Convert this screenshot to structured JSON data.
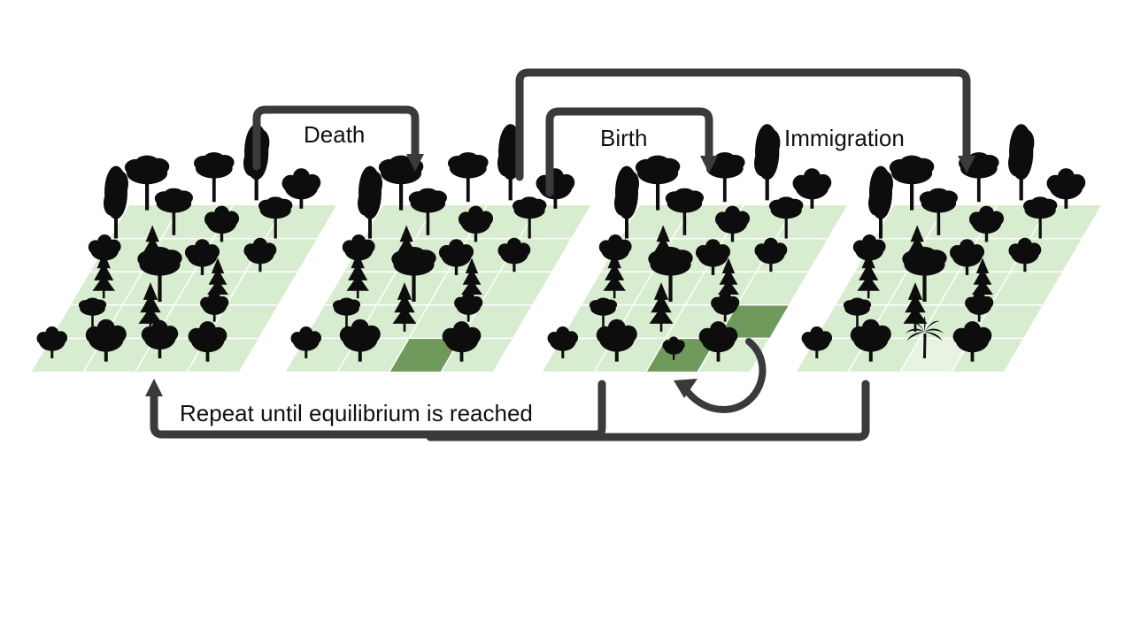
{
  "labels": {
    "death": "Death",
    "birth": "Birth",
    "immigration": "Immigration",
    "repeat": "Repeat until equilibrium is reached"
  },
  "colors": {
    "background": "#ffffff",
    "grid_cell": "#d8ecd0",
    "grid_line": "#ffffff",
    "highlight_cell": "#6f9a5c",
    "tree": "#0d0d0d",
    "arrow": "#3a3a3a"
  },
  "panels": [
    {
      "name": "initial-forest",
      "highlighted_cells": []
    },
    {
      "name": "after-death",
      "highlighted_cells": [
        "vacant-plot"
      ]
    },
    {
      "name": "after-birth",
      "highlighted_cells": [
        "vacant-plot",
        "parent-plot"
      ]
    },
    {
      "name": "after-immigration",
      "highlighted_cells": [
        "immigrant-plot"
      ]
    }
  ],
  "icons": {
    "tree": "tree-silhouette-icon",
    "conifer": "conifer-tree-icon",
    "palm": "palm-tree-icon",
    "recruitment_arrow": "curved-arrow-icon"
  }
}
